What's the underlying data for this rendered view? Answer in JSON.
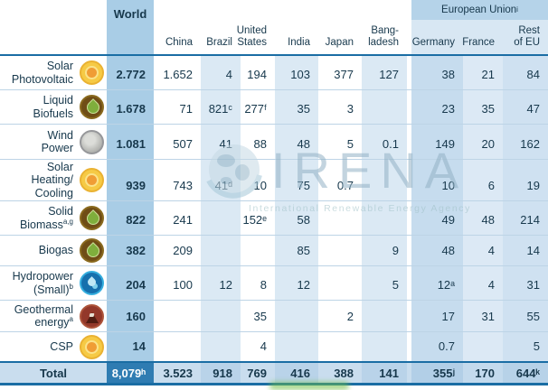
{
  "chart_data": {
    "type": "table",
    "columns": [
      "World",
      "China",
      "Brazil",
      "United States",
      "India",
      "Japan",
      "Bangladesh",
      "Germany",
      "France",
      "Rest of EU"
    ],
    "column_group": {
      "label": "European Union",
      "sup": "i",
      "spans": [
        "Germany",
        "France",
        "Rest of EU"
      ]
    },
    "rows": [
      {
        "label": "Solar Photovoltaic",
        "label_display": "Solar\nPhotovoltaic",
        "sup": "",
        "icon": "sun",
        "values": [
          "2.772",
          "1.652",
          "4",
          "194",
          "103",
          "377",
          "127",
          "38",
          "21",
          "84"
        ]
      },
      {
        "label": "Liquid Biofuels",
        "label_display": "Liquid\nBiofuels",
        "sup": "",
        "icon": "bio",
        "values": [
          "1.678",
          "71",
          "821ᶜ",
          "277ᶠ",
          "35",
          "3",
          "",
          "23",
          "35",
          "47"
        ]
      },
      {
        "label": "Wind Power",
        "label_display": "Wind\nPower",
        "sup": "",
        "icon": "wind",
        "values": [
          "1.081",
          "507",
          "41",
          "88",
          "48",
          "5",
          "0.1",
          "149",
          "20",
          "162"
        ]
      },
      {
        "label": "Solar Heating/Cooling",
        "label_display": "Solar\nHeating/\nCooling",
        "sup": "",
        "icon": "sun",
        "values": [
          "939",
          "743",
          "41ᵈ",
          "10",
          "75",
          "0.7",
          "",
          "10",
          "6",
          "19"
        ]
      },
      {
        "label": "Solid Biomass",
        "label_display": "Solid\nBiomass",
        "sup": "a,g",
        "icon": "bio",
        "values": [
          "822",
          "241",
          "",
          "152ᵉ",
          "58",
          "",
          "",
          "49",
          "48",
          "214"
        ]
      },
      {
        "label": "Biogas",
        "label_display": "Biogas",
        "sup": "",
        "icon": "bio",
        "values": [
          "382",
          "209",
          "",
          "",
          "85",
          "",
          "9",
          "48",
          "4",
          "14"
        ]
      },
      {
        "label": "Hydropower (Small)",
        "label_display": "Hydropower\n(Small)",
        "sup": "b",
        "icon": "hydro",
        "values": [
          "204",
          "100",
          "12",
          "8",
          "12",
          "",
          "5",
          "12ᵃ",
          "4",
          "31"
        ]
      },
      {
        "label": "Geothermal energy",
        "label_display": "Geothermal\nenergy",
        "sup": "a",
        "icon": "geo",
        "values": [
          "160",
          "",
          "",
          "35",
          "",
          "2",
          "",
          "17",
          "31",
          "55"
        ]
      },
      {
        "label": "CSP",
        "label_display": "CSP",
        "sup": "",
        "icon": "sun",
        "values": [
          "14",
          "",
          "",
          "4",
          "",
          "",
          "",
          "0.7",
          "",
          "5"
        ]
      }
    ],
    "total_row": {
      "label": "Total",
      "values": [
        "8,079ʰ",
        "3.523",
        "918",
        "769",
        "416",
        "388",
        "141",
        "355ʲ",
        "170",
        "644ᵏ"
      ]
    }
  },
  "header": {
    "world": "World",
    "eu": {
      "label": "European Union",
      "sup": "i"
    },
    "column_display": [
      "China",
      "Brazil",
      "United\nStates",
      "India",
      "Japan",
      "Bang-\nladesh",
      "Germany",
      "France",
      "Rest\nof EU"
    ]
  },
  "watermark": {
    "brand": "IRENA",
    "subtitle": "International Renewable Energy Agency"
  },
  "colors": {
    "header_line": "#1a6da4",
    "world_band": "#a9cde6",
    "stripe_band": "#dbe9f4",
    "eu_band": "#b5d3e9",
    "eu_subband": "#d8e7f3",
    "germany_band": "#c6dcee",
    "france_band": "#dce9f5",
    "rest_eu_band": "#cfe1f1",
    "total_row_bg": "#c9ddee",
    "total_world_cell": "#2f7cb2",
    "text": "#17384c",
    "watermark_blue": "#93b2c5",
    "watermark_green": "#72bf44"
  }
}
